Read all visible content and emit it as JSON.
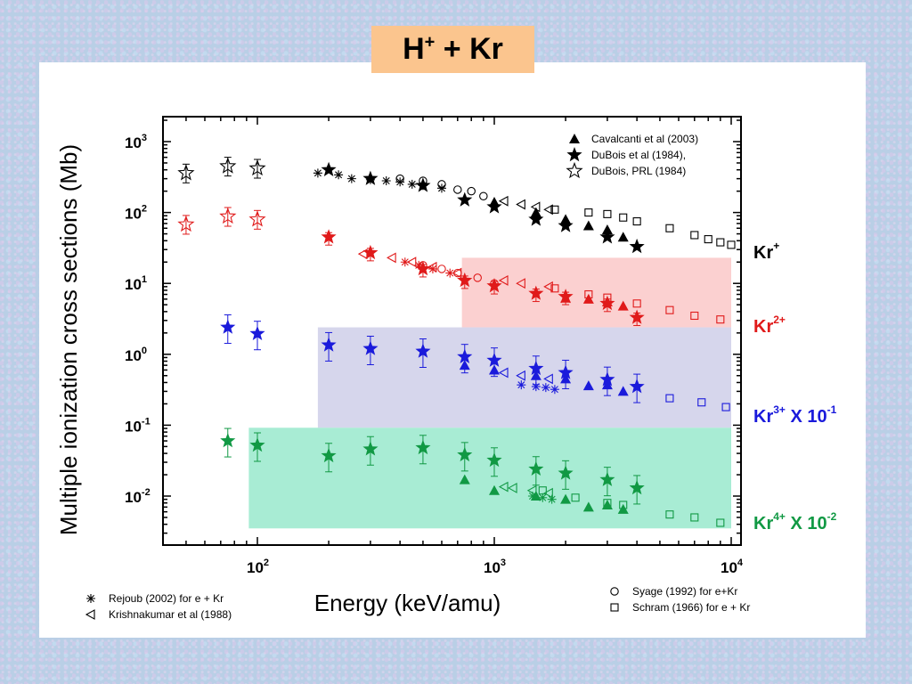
{
  "title": {
    "main": "H",
    "sup": "+",
    "rest": " + Kr"
  },
  "colors": {
    "black": "#000000",
    "red": "#e01a1a",
    "blue": "#1a1adb",
    "green": "#119944",
    "band_red": "#fbd0d0",
    "band_blue": "#d6d6ec",
    "band_green": "#a8ecd4",
    "title_bg": "#fbc58e"
  },
  "chart_data": {
    "type": "scatter",
    "xlabel": "Energy (keV/amu)",
    "ylabel": "Multiple ionization cross sections (Mb)",
    "xscale": "log",
    "yscale": "log",
    "xlim": [
      40,
      11000
    ],
    "ylim": [
      0.0035,
      1500
    ],
    "x_ticks": [
      {
        "base": "10",
        "exp": "2"
      },
      {
        "base": "10",
        "exp": "3"
      },
      {
        "base": "10",
        "exp": "4"
      }
    ],
    "y_ticks": [
      {
        "base": "10",
        "exp": "3"
      },
      {
        "base": "10",
        "exp": "2"
      },
      {
        "base": "10",
        "exp": "1"
      },
      {
        "base": "10",
        "exp": "0"
      },
      {
        "base": "10",
        "exp": "-1"
      },
      {
        "base": "10",
        "exp": "-2"
      }
    ],
    "right_labels": [
      {
        "species": "Kr",
        "charge": "+",
        "scale": "",
        "color": "black"
      },
      {
        "species": "Kr",
        "charge": "2+",
        "scale": "",
        "color": "red"
      },
      {
        "species": "Kr",
        "charge": "3+",
        "scale": "X 10",
        "scale_exp": "-1",
        "color": "blue"
      },
      {
        "species": "Kr",
        "charge": "4+",
        "scale": "X 10",
        "scale_exp": "-2",
        "color": "green"
      }
    ],
    "shaded_regions": [
      {
        "color": "band_red",
        "x": [
          730,
          10000
        ],
        "y": [
          2.4,
          23
        ]
      },
      {
        "color": "band_blue",
        "x": [
          180,
          10000
        ],
        "y": [
          0.092,
          2.4
        ]
      },
      {
        "color": "band_green",
        "x": [
          92,
          10000
        ],
        "y": [
          0.0035,
          0.092
        ]
      }
    ],
    "legend_top": [
      {
        "marker": "triangle",
        "label": "Cavalcanti et al (2003)"
      },
      {
        "marker": "star",
        "label": "DuBois et al (1984),"
      },
      {
        "marker": "star-open",
        "label": "DuBois, PRL (1984)"
      }
    ],
    "legend_bottom_left": [
      {
        "marker": "asterisk",
        "label": "Rejoub (2002) for e + Kr"
      },
      {
        "marker": "triangle-left",
        "label": "Krishnakumar et al (1988)"
      }
    ],
    "legend_bottom_right": [
      {
        "marker": "circle",
        "label": "Syage (1992) for e+Kr"
      },
      {
        "marker": "square",
        "label": "Schram (1966) for e + Kr"
      }
    ],
    "series": [
      {
        "name": "DuBois, PRL (1984)",
        "charge": "Kr+",
        "marker": "star-open",
        "color": "black",
        "x": [
          50,
          75,
          100
        ],
        "y": [
          360,
          450,
          420
        ]
      },
      {
        "name": "DuBois et al (1984),",
        "charge": "Kr+",
        "marker": "star",
        "color": "black",
        "x": [
          200,
          300,
          500,
          750,
          1000,
          1500,
          2000,
          3000,
          4000
        ],
        "y": [
          400,
          300,
          240,
          150,
          120,
          80,
          65,
          45,
          33
        ]
      },
      {
        "name": "Cavalcanti et al (2003)",
        "charge": "Kr+",
        "marker": "triangle",
        "color": "black",
        "x": [
          1000,
          1500,
          2000,
          2500,
          3000,
          3500
        ],
        "y": [
          140,
          100,
          80,
          65,
          57,
          45
        ]
      },
      {
        "name": "Rejoub (2002) for e + Kr",
        "charge": "Kr+",
        "marker": "asterisk",
        "color": "black",
        "x": [
          180,
          220,
          250,
          300,
          350,
          400,
          450,
          500,
          600
        ],
        "y": [
          360,
          340,
          300,
          290,
          280,
          270,
          250,
          240,
          220
        ]
      },
      {
        "name": "Syage (1992) for e+Kr",
        "charge": "Kr+",
        "marker": "circle",
        "color": "black",
        "x": [
          400,
          500,
          600,
          700,
          800,
          900
        ],
        "y": [
          300,
          280,
          250,
          210,
          200,
          170
        ]
      },
      {
        "name": "Krishnakumar et al (1988)",
        "charge": "Kr+",
        "marker": "triangle-left",
        "color": "black",
        "x": [
          1100,
          1300,
          1500,
          1700
        ],
        "y": [
          145,
          130,
          120,
          110
        ]
      },
      {
        "name": "Schram (1966) for e + Kr",
        "charge": "Kr+",
        "marker": "square",
        "color": "black",
        "x": [
          1800,
          2500,
          3000,
          3500,
          4000,
          5500,
          7000,
          8000,
          9000,
          10000
        ],
        "y": [
          110,
          100,
          95,
          85,
          75,
          60,
          48,
          42,
          38,
          35
        ]
      },
      {
        "name": "DuBois, PRL (1984)",
        "charge": "Kr2+",
        "marker": "star-open",
        "color": "red",
        "x": [
          50,
          75,
          100
        ],
        "y": [
          68,
          88,
          80
        ]
      },
      {
        "name": "DuBois et al (1984),",
        "charge": "Kr2+",
        "marker": "star",
        "color": "red",
        "x": [
          200,
          300,
          500,
          750,
          1000,
          1500,
          2000,
          3000,
          4000
        ],
        "y": [
          45,
          27,
          16,
          11,
          9.2,
          7.2,
          6.5,
          5.2,
          3.3
        ]
      },
      {
        "name": "Cavalcanti et al (2003)",
        "charge": "Kr2+",
        "marker": "triangle",
        "color": "red",
        "x": [
          2000,
          2500,
          3000,
          3500
        ],
        "y": [
          6.2,
          6.0,
          5.5,
          4.8
        ]
      },
      {
        "name": "Krishnakumar et al (1988)",
        "charge": "Kr2+",
        "marker": "triangle-left",
        "color": "red",
        "x": [
          280,
          370,
          450,
          550,
          700,
          1100,
          1300,
          1700
        ],
        "y": [
          26,
          23,
          20,
          17,
          14,
          11,
          10,
          9
        ]
      },
      {
        "name": "Rejoub (2002) for e + Kr",
        "charge": "Kr2+",
        "marker": "asterisk",
        "color": "red",
        "x": [
          420,
          480,
          550,
          650
        ],
        "y": [
          20,
          18,
          16,
          14
        ]
      },
      {
        "name": "Syage (1992) for e+Kr",
        "charge": "Kr2+",
        "marker": "circle",
        "color": "red",
        "x": [
          500,
          600,
          700,
          850,
          1000
        ],
        "y": [
          18,
          16,
          14,
          12,
          10
        ]
      },
      {
        "name": "Schram (1966) for e + Kr",
        "charge": "Kr2+",
        "marker": "square",
        "color": "red",
        "x": [
          1800,
          2500,
          3000,
          4000,
          5500,
          7000,
          9000
        ],
        "y": [
          8.5,
          7,
          6.3,
          5.2,
          4.2,
          3.5,
          3.1
        ]
      },
      {
        "name": "DuBois et al (1984),",
        "charge": "Kr3+",
        "marker": "star",
        "color": "blue",
        "x": [
          75,
          100,
          200,
          300,
          500,
          750,
          1000,
          1500,
          2000,
          3000,
          4000
        ],
        "y": [
          2.4,
          1.95,
          1.35,
          1.2,
          1.1,
          0.92,
          0.82,
          0.63,
          0.55,
          0.44,
          0.35
        ]
      },
      {
        "name": "Cavalcanti et al (2003)",
        "charge": "Kr3+",
        "marker": "triangle",
        "color": "blue",
        "x": [
          750,
          1000,
          1500,
          2000,
          2500,
          3000,
          3500
        ],
        "y": [
          0.7,
          0.6,
          0.5,
          0.45,
          0.36,
          0.37,
          0.3
        ]
      },
      {
        "name": "Krishnakumar et al (1988)",
        "charge": "Kr3+",
        "marker": "triangle-left",
        "color": "blue",
        "x": [
          1100,
          1300,
          1700
        ],
        "y": [
          0.55,
          0.5,
          0.45
        ]
      },
      {
        "name": "Rejoub (2002) for e + Kr",
        "charge": "Kr3+",
        "marker": "asterisk",
        "color": "blue",
        "x": [
          1300,
          1500,
          1650,
          1800
        ],
        "y": [
          0.37,
          0.35,
          0.34,
          0.32
        ]
      },
      {
        "name": "Schram (1966) for e + Kr",
        "charge": "Kr3+",
        "marker": "square",
        "color": "blue",
        "x": [
          5500,
          7500,
          9500
        ],
        "y": [
          0.24,
          0.21,
          0.18
        ]
      },
      {
        "name": "DuBois et al (1984),",
        "charge": "Kr4+",
        "marker": "star",
        "color": "green",
        "x": [
          75,
          100,
          200,
          300,
          500,
          750,
          1000,
          1500,
          2000,
          3000,
          4000
        ],
        "y": [
          0.06,
          0.052,
          0.037,
          0.046,
          0.048,
          0.038,
          0.032,
          0.024,
          0.021,
          0.017,
          0.013
        ]
      },
      {
        "name": "Cavalcanti et al (2003)",
        "charge": "Kr4+",
        "marker": "triangle",
        "color": "green",
        "x": [
          750,
          1000,
          1500,
          2000,
          2500,
          3000,
          3500
        ],
        "y": [
          0.017,
          0.012,
          0.01,
          0.009,
          0.007,
          0.0075,
          0.0065
        ]
      },
      {
        "name": "Krishnakumar et al (1988)",
        "charge": "Kr4+",
        "marker": "triangle-left",
        "color": "green",
        "x": [
          1100,
          1200,
          1450,
          1700
        ],
        "y": [
          0.0135,
          0.013,
          0.012,
          0.011
        ]
      },
      {
        "name": "Rejoub (2002) for e + Kr",
        "charge": "Kr4+",
        "marker": "asterisk",
        "color": "green",
        "x": [
          1450,
          1600,
          1750
        ],
        "y": [
          0.01,
          0.0095,
          0.009
        ]
      },
      {
        "name": "Schram (1966) for e + Kr",
        "charge": "Kr4+",
        "marker": "square",
        "color": "green",
        "x": [
          1600,
          2200,
          3000,
          3500,
          5500,
          7000,
          9000
        ],
        "y": [
          0.012,
          0.0095,
          0.008,
          0.0075,
          0.0055,
          0.005,
          0.0042
        ]
      }
    ]
  }
}
